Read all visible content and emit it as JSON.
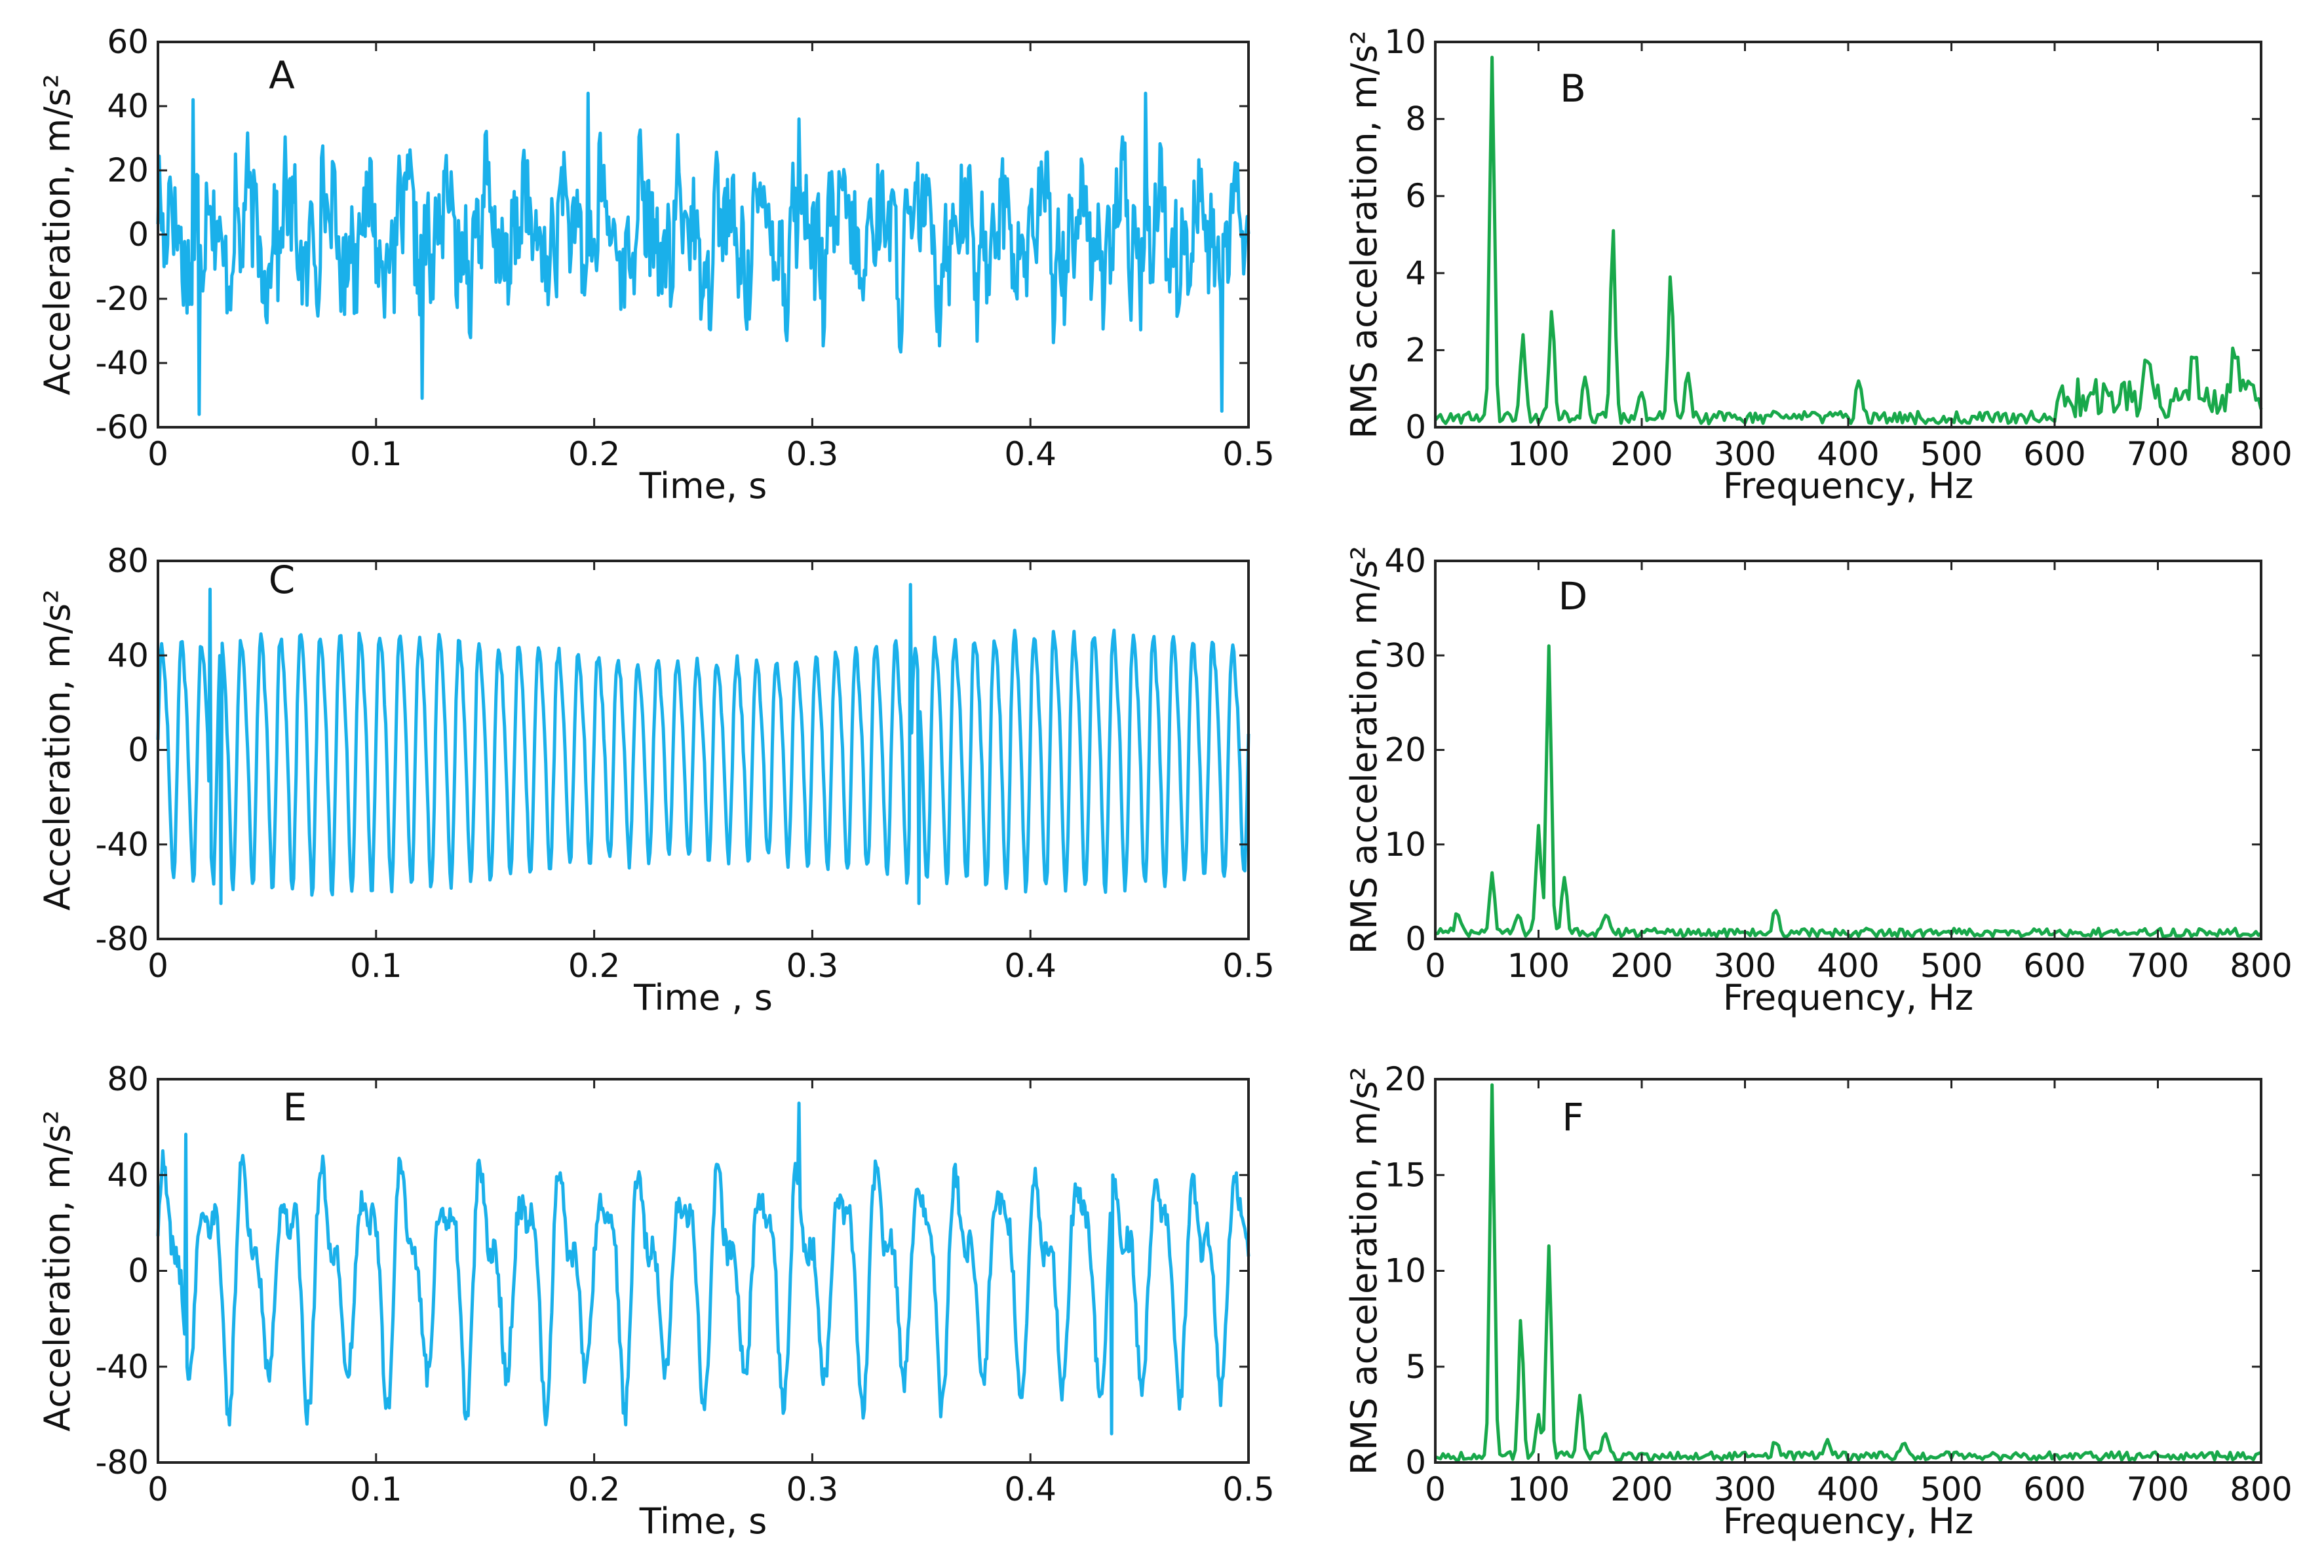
{
  "colors": {
    "time_signal": "#1ab0ea",
    "spectrum": "#18a84a",
    "axes": "#222222"
  },
  "chart_data": [
    {
      "panel": "A",
      "type": "line",
      "signal": "noisy",
      "xlabel": "Time, s",
      "ylabel": "Acceleration, m/s²",
      "xlim": [
        0,
        0.5
      ],
      "ylim": [
        -60,
        60
      ],
      "xticks": [
        "0",
        "0.1",
        "0.2",
        "0.3",
        "0.4",
        "0.5"
      ],
      "yticks": [
        "60",
        "40",
        "20",
        "0",
        "-20",
        "-40",
        "-60"
      ],
      "amplitude": 20,
      "extremes": [
        [
          0.016,
          42
        ],
        [
          0.019,
          -56
        ],
        [
          0.121,
          -51
        ],
        [
          0.197,
          44
        ],
        [
          0.294,
          36
        ],
        [
          0.453,
          44
        ],
        [
          0.488,
          -55
        ]
      ],
      "series": [
        {
          "values": []
        }
      ]
    },
    {
      "panel": "B",
      "type": "line",
      "signal": "spectrum",
      "xlabel": "Frequency, Hz",
      "ylabel": "RMS acceleration, m/s²",
      "xlim": [
        0,
        800
      ],
      "ylim": [
        0,
        10
      ],
      "xticks": [
        "0",
        "100",
        "200",
        "300",
        "400",
        "500",
        "600",
        "700",
        "800"
      ],
      "yticks": [
        "10",
        "8",
        "6",
        "4",
        "2",
        "0"
      ],
      "noise_floor": 0.3,
      "peaks": [
        [
          55,
          9.6
        ],
        [
          85,
          2.4
        ],
        [
          113,
          3.0
        ],
        [
          145,
          1.3
        ],
        [
          172,
          5.1
        ],
        [
          200,
          0.9
        ],
        [
          228,
          3.9
        ],
        [
          245,
          1.4
        ],
        [
          410,
          1.2
        ],
        [
          690,
          1.7
        ],
        [
          735,
          1.8
        ],
        [
          775,
          1.8
        ]
      ],
      "series": [
        {
          "values": []
        }
      ]
    },
    {
      "panel": "C",
      "type": "line",
      "signal": "periodic",
      "xlabel": "Time , s",
      "ylabel": "Acceleration, m/s²",
      "xlim": [
        0,
        0.5
      ],
      "ylim": [
        -80,
        80
      ],
      "xticks": [
        "0",
        "0.1",
        "0.2",
        "0.3",
        "0.4",
        "0.5"
      ],
      "yticks": [
        "80",
        "40",
        "0",
        "-40",
        "-80"
      ],
      "frequency_hz": 110,
      "amplitude": 50,
      "extremes": [
        [
          0.024,
          68
        ],
        [
          0.029,
          -65
        ],
        [
          0.345,
          70
        ],
        [
          0.349,
          -65
        ]
      ],
      "series": [
        {
          "values": []
        }
      ]
    },
    {
      "panel": "D",
      "type": "line",
      "signal": "spectrum",
      "xlabel": "Frequency, Hz",
      "ylabel": "RMS acceleration, m/s²",
      "xlim": [
        0,
        800
      ],
      "ylim": [
        0,
        40
      ],
      "xticks": [
        "0",
        "100",
        "200",
        "300",
        "400",
        "500",
        "600",
        "700",
        "800"
      ],
      "yticks": [
        "40",
        "30",
        "20",
        "10",
        "0"
      ],
      "noise_floor": 0.8,
      "peaks": [
        [
          22,
          2.5
        ],
        [
          55,
          7
        ],
        [
          80,
          2.5
        ],
        [
          100,
          12
        ],
        [
          110,
          31
        ],
        [
          125,
          6.5
        ],
        [
          165,
          2.5
        ],
        [
          330,
          3
        ],
        [
          420,
          1
        ]
      ],
      "series": [
        {
          "values": []
        }
      ]
    },
    {
      "panel": "E",
      "type": "line",
      "signal": "mixed",
      "xlabel": "Time, s",
      "ylabel": "Acceleration, m/s²",
      "xlim": [
        0,
        0.5
      ],
      "ylim": [
        -80,
        80
      ],
      "xticks": [
        "0",
        "0.1",
        "0.2",
        "0.3",
        "0.4",
        "0.5"
      ],
      "yticks": [
        "80",
        "40",
        "0",
        "-40",
        "-80"
      ],
      "frequency_hz": 55,
      "amplitude": 48,
      "extremes": [
        [
          0.294,
          70
        ],
        [
          0.437,
          -68
        ],
        [
          0.013,
          57
        ]
      ],
      "series": [
        {
          "values": []
        }
      ]
    },
    {
      "panel": "F",
      "type": "line",
      "signal": "spectrum",
      "xlabel": "Frequency, Hz",
      "ylabel": "RMS acceleration, m/s²",
      "xlim": [
        0,
        800
      ],
      "ylim": [
        0,
        20
      ],
      "xticks": [
        "0",
        "100",
        "200",
        "300",
        "400",
        "500",
        "600",
        "700",
        "800"
      ],
      "yticks": [
        "20",
        "15",
        "10",
        "5",
        "0"
      ],
      "noise_floor": 0.4,
      "peaks": [
        [
          55,
          19.7
        ],
        [
          83,
          7.4
        ],
        [
          100,
          2.5
        ],
        [
          110,
          11.3
        ],
        [
          140,
          3.5
        ],
        [
          165,
          1.5
        ],
        [
          330,
          1
        ],
        [
          380,
          1.2
        ],
        [
          455,
          1
        ]
      ],
      "series": [
        {
          "values": []
        }
      ]
    }
  ]
}
